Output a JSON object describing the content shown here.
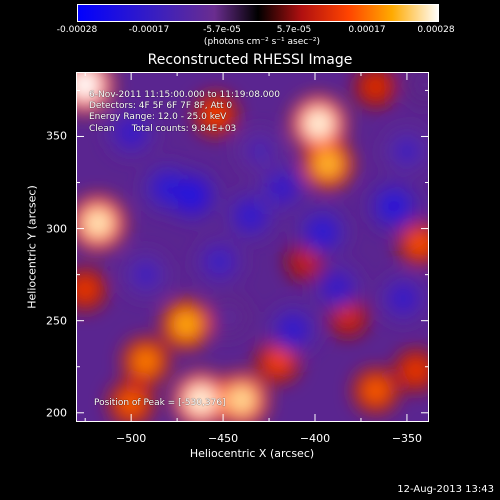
{
  "colorbar": {
    "ticks": [
      "-0.00028",
      "-0.00017",
      "-5.7e-05",
      "5.7e-05",
      "0.00017",
      "0.00028"
    ],
    "unit": "(photons cm⁻² s⁻¹ asec⁻²)",
    "range": [
      -0.00028,
      0.00028
    ],
    "colormap": "blue-purple-red-orange-yellow-white"
  },
  "info": {
    "time_range": "6-Nov-2011 11:15:00.000 to 11:19:08.000",
    "detectors": "Detectors: 4F 5F 6F 7F 8F, Att 0",
    "energy": "Energy Range: 12.0 - 25.0 keV",
    "clean": "Clean      Total counts: 9.84E+03",
    "peak": "Position of Peak = [-530,376]"
  },
  "footer": "12-Aug-2013 13:43",
  "chart_data": {
    "type": "heatmap",
    "title": "Reconstructed RHESSI Image",
    "xlabel": "Heliocentric X (arcsec)",
    "ylabel": "Heliocentric Y (arcsec)",
    "xlim": [
      -530,
      -338
    ],
    "ylim": [
      195,
      385
    ],
    "x_ticks": [
      -500,
      -450,
      -400,
      -350
    ],
    "y_ticks": [
      200,
      250,
      300,
      350
    ],
    "x_tick_labels": [
      "−500",
      "−450",
      "−400",
      "−350"
    ],
    "y_tick_labels": [
      "200",
      "250",
      "300",
      "350"
    ],
    "z_range": [
      -0.00028,
      0.00028
    ],
    "peak_position": [
      -530,
      376
    ],
    "sources": [
      {
        "x": -525,
        "y": 378,
        "value": 0.00028
      },
      {
        "x": -518,
        "y": 303,
        "value": 0.00026
      },
      {
        "x": -398,
        "y": 357,
        "value": 0.00027
      },
      {
        "x": -393,
        "y": 335,
        "value": 0.00022
      },
      {
        "x": -462,
        "y": 207,
        "value": 0.00027
      },
      {
        "x": -440,
        "y": 207,
        "value": 0.00025
      },
      {
        "x": -470,
        "y": 248,
        "value": 0.00021
      },
      {
        "x": -492,
        "y": 228,
        "value": 0.00018
      },
      {
        "x": -420,
        "y": 228,
        "value": 0.00014
      },
      {
        "x": -367,
        "y": 212,
        "value": 0.00016
      },
      {
        "x": -343,
        "y": 292,
        "value": 0.00015
      },
      {
        "x": -345,
        "y": 223,
        "value": 0.00013
      },
      {
        "x": -454,
        "y": 362,
        "value": 0.00014
      },
      {
        "x": -367,
        "y": 377,
        "value": 0.00012
      },
      {
        "x": -382,
        "y": 252,
        "value": 0.00011
      },
      {
        "x": -405,
        "y": 282,
        "value": 0.0001
      },
      {
        "x": -500,
        "y": 205,
        "value": 0.00016
      },
      {
        "x": -525,
        "y": 267,
        "value": 0.00013
      },
      {
        "x": -480,
        "y": 322,
        "value": -0.0002
      },
      {
        "x": -500,
        "y": 352,
        "value": -0.00018
      },
      {
        "x": -467,
        "y": 318,
        "value": -0.00022
      },
      {
        "x": -435,
        "y": 307,
        "value": -0.00019
      },
      {
        "x": -418,
        "y": 322,
        "value": -0.00018
      },
      {
        "x": -396,
        "y": 298,
        "value": -0.0002
      },
      {
        "x": -357,
        "y": 312,
        "value": -0.00021
      },
      {
        "x": -388,
        "y": 268,
        "value": -0.00018
      },
      {
        "x": -412,
        "y": 245,
        "value": -0.00019
      },
      {
        "x": -492,
        "y": 275,
        "value": -0.00016
      },
      {
        "x": -452,
        "y": 282,
        "value": -0.00017
      },
      {
        "x": -430,
        "y": 342,
        "value": -0.00014
      },
      {
        "x": -350,
        "y": 342,
        "value": -0.00016
      },
      {
        "x": -352,
        "y": 262,
        "value": -0.00018
      },
      {
        "x": -447,
        "y": 252,
        "value": -0.0001
      },
      {
        "x": -340,
        "y": 378,
        "value": -9e-05
      }
    ]
  }
}
